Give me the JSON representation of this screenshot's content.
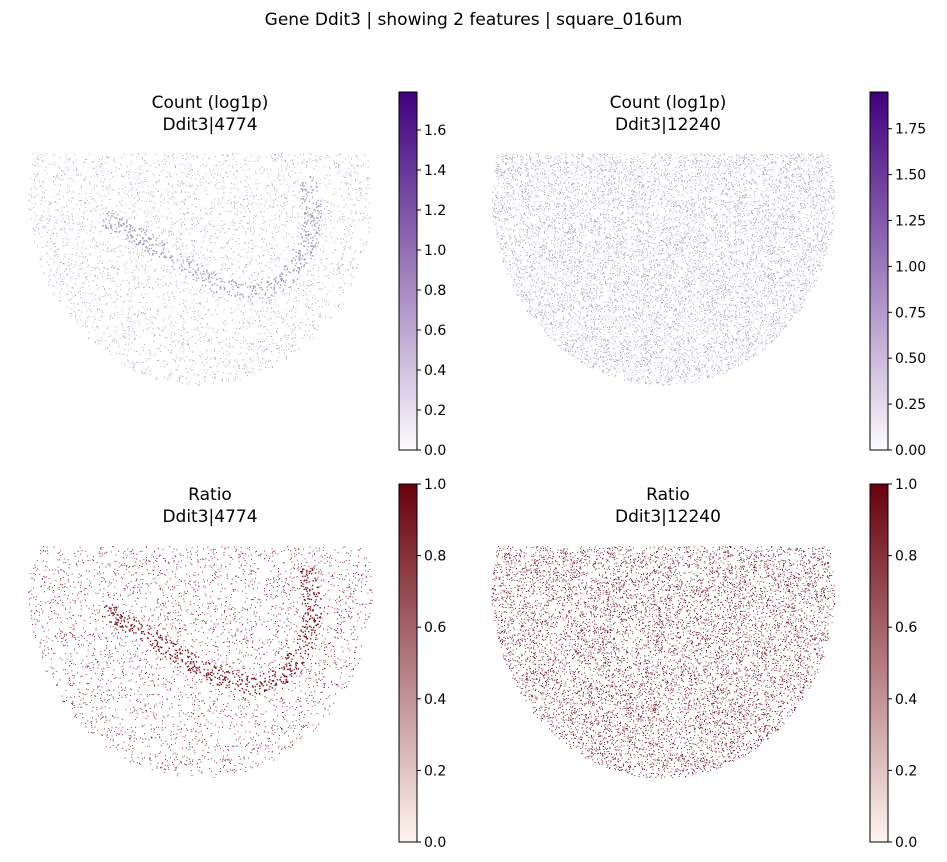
{
  "figure": {
    "suptitle": "Gene Ddit3 | showing 2 features | square_016um"
  },
  "chart_data": [
    {
      "type": "scatter",
      "title": [
        "Count (log1p)",
        "Ddit3|4774"
      ],
      "colormap": "Purples",
      "color_low": "#fcfbfd",
      "color_high": "#3f007d",
      "point_color": "#9b9bbb",
      "point_density": "sparse",
      "vmin": 0.0,
      "vmax": 1.79,
      "colorbar_ticks": [
        0.0,
        0.2,
        0.4,
        0.6,
        0.8,
        1.0,
        1.2,
        1.4,
        1.6
      ],
      "colorbar_tick_labels": [
        "0.0",
        "0.2",
        "0.4",
        "0.6",
        "0.8",
        "1.0",
        "1.2",
        "1.4",
        "1.6"
      ]
    },
    {
      "type": "scatter",
      "title": [
        "Count (log1p)",
        "Ddit3|12240"
      ],
      "colormap": "Purples",
      "color_low": "#fcfbfd",
      "color_high": "#3f007d",
      "point_color": "#9b9bbb",
      "point_density": "dense",
      "vmin": 0.0,
      "vmax": 1.95,
      "colorbar_ticks": [
        0.0,
        0.25,
        0.5,
        0.75,
        1.0,
        1.25,
        1.5,
        1.75
      ],
      "colorbar_tick_labels": [
        "0.00",
        "0.25",
        "0.50",
        "0.75",
        "1.00",
        "1.25",
        "1.50",
        "1.75"
      ]
    },
    {
      "type": "scatter",
      "title": [
        "Ratio",
        "Ddit3|4774"
      ],
      "colormap": "Reds",
      "color_low": "#fff5f0",
      "color_high": "#67000d",
      "point_color": "#7a0a14",
      "point_density": "sparse",
      "vmin": 0.0,
      "vmax": 1.0,
      "colorbar_ticks": [
        0.0,
        0.2,
        0.4,
        0.6,
        0.8,
        1.0
      ],
      "colorbar_tick_labels": [
        "0.0",
        "0.2",
        "0.4",
        "0.6",
        "0.8",
        "1.0"
      ]
    },
    {
      "type": "scatter",
      "title": [
        "Ratio",
        "Ddit3|12240"
      ],
      "colormap": "Reds",
      "color_low": "#fff5f0",
      "color_high": "#67000d",
      "point_color": "#67000d",
      "point_density": "dense",
      "vmin": 0.0,
      "vmax": 1.0,
      "colorbar_ticks": [
        0.0,
        0.2,
        0.4,
        0.6,
        0.8,
        1.0
      ],
      "colorbar_tick_labels": [
        "0.0",
        "0.2",
        "0.4",
        "0.6",
        "0.8",
        "1.0"
      ]
    }
  ]
}
